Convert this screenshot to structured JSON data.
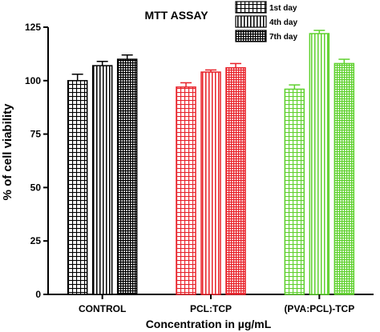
{
  "chart_data": {
    "type": "bar",
    "title": "MTT ASSAY",
    "ylabel": "% of cell viability",
    "xlabel": "Concentration in µg/mL",
    "categories": [
      "CONTROL",
      "PCL:TCP",
      "(PVA:PCL)-TCP"
    ],
    "ylim": [
      0,
      125
    ],
    "yticks": [
      0,
      25,
      50,
      75,
      100,
      125
    ],
    "grid": false,
    "legend_position": "top-right",
    "series": [
      {
        "name": "1st day",
        "pattern": "grid",
        "values": [
          100,
          97,
          96
        ],
        "errors": [
          3,
          2,
          2
        ]
      },
      {
        "name": "4th day",
        "pattern": "vertical-lines",
        "values": [
          107,
          104,
          122
        ],
        "errors": [
          2,
          1,
          1.5
        ]
      },
      {
        "name": "7th day",
        "pattern": "dense-grid",
        "values": [
          110,
          106,
          108
        ],
        "errors": [
          2,
          2,
          2
        ]
      }
    ],
    "category_colors": [
      "#000000",
      "#e8222a",
      "#5fd12e"
    ]
  }
}
